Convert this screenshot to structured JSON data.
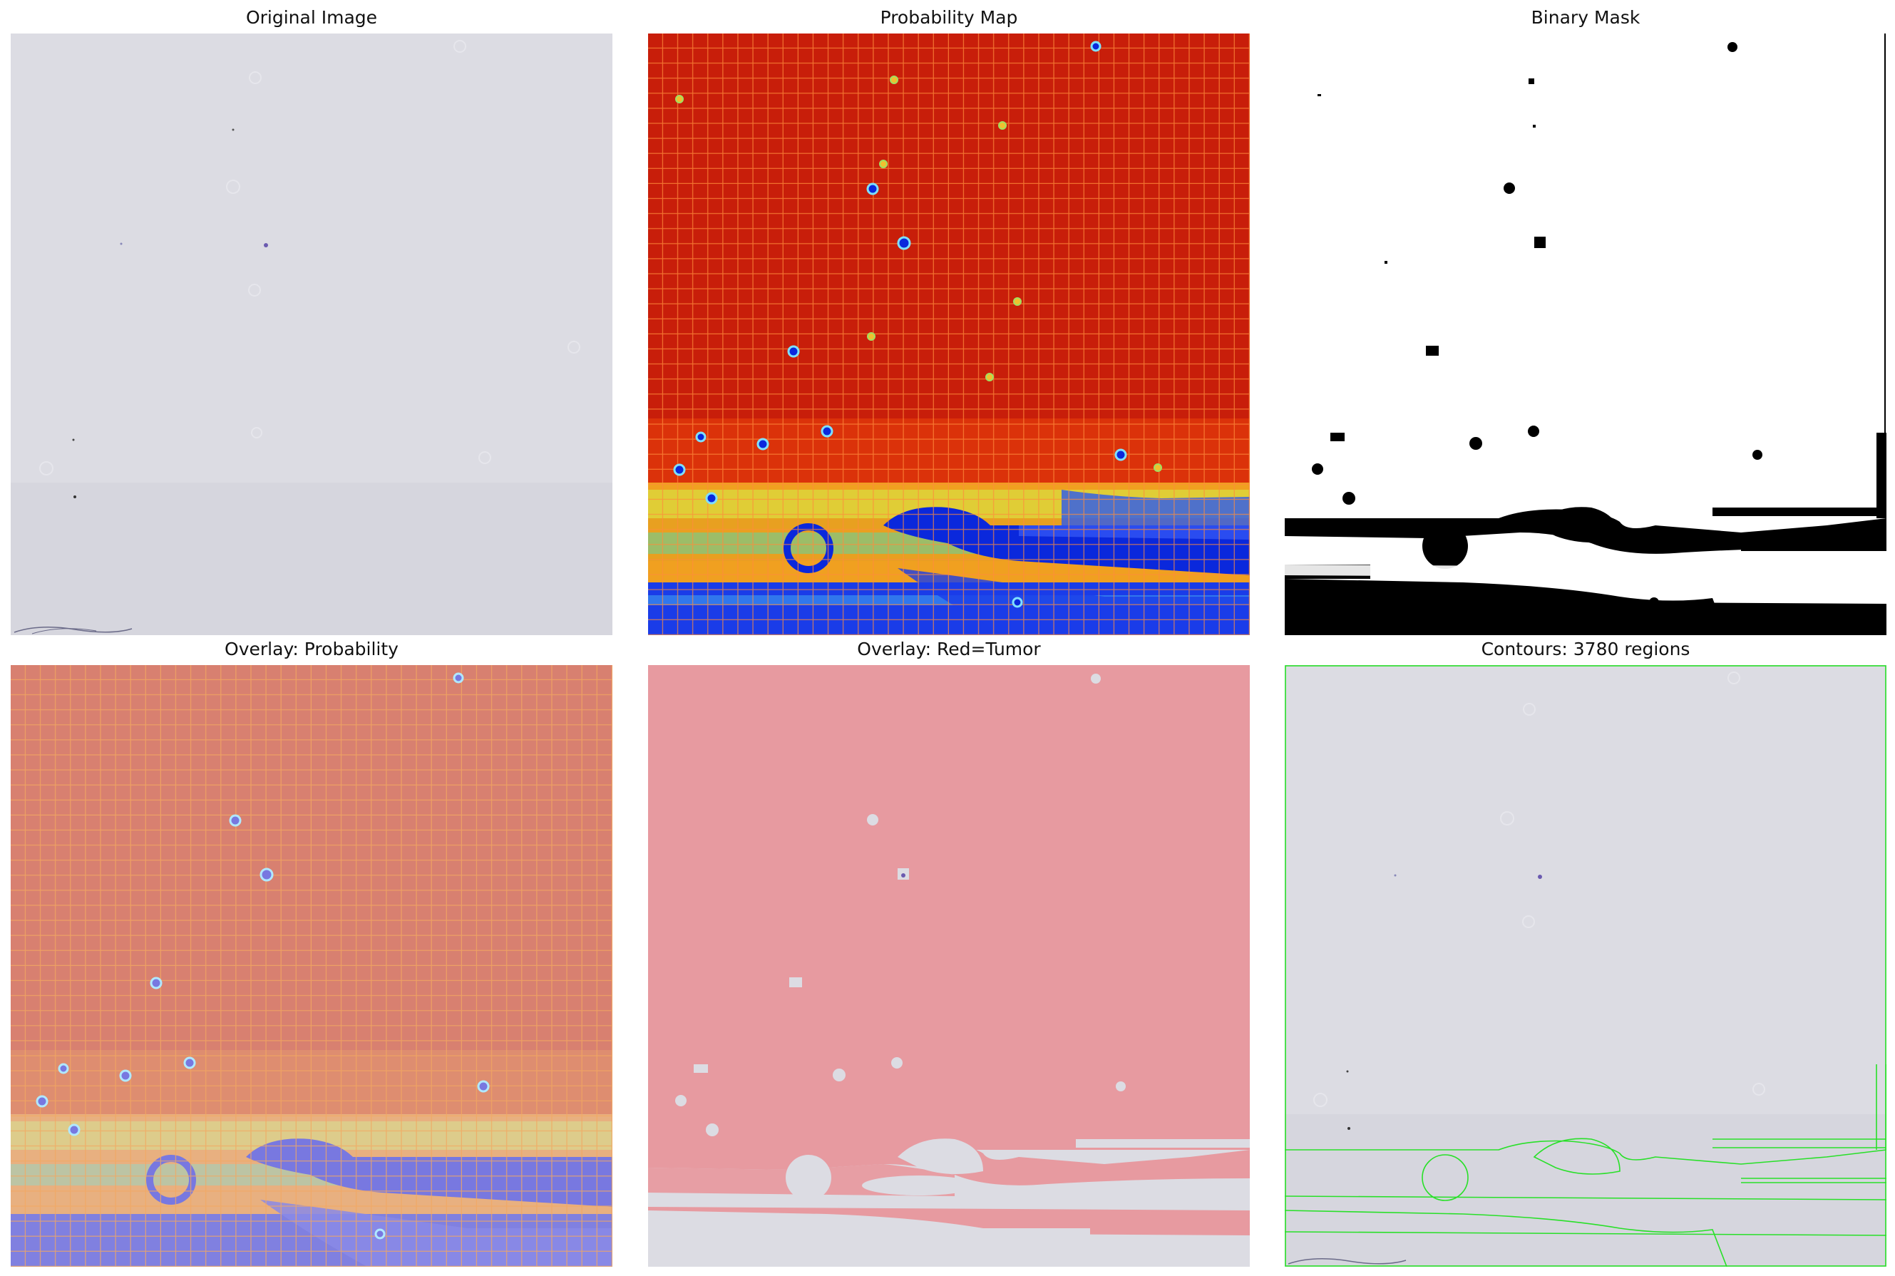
{
  "figure": {
    "panels": [
      {
        "id": "original",
        "title": "Original Image"
      },
      {
        "id": "probability",
        "title": "Probability Map"
      },
      {
        "id": "mask",
        "title": "Binary Mask"
      },
      {
        "id": "overlay_prob",
        "title": "Overlay: Probability"
      },
      {
        "id": "overlay_red",
        "title": "Overlay: Red=Tumor"
      },
      {
        "id": "contours",
        "title": "Contours: 3780 regions"
      }
    ]
  },
  "colors": {
    "slide_gray": "#dcdce3",
    "prob_red": "#c81e0a",
    "prob_blue": "#0a28dc",
    "tumor_overlay": "#e79aa0",
    "contour_green": "#28e028"
  }
}
